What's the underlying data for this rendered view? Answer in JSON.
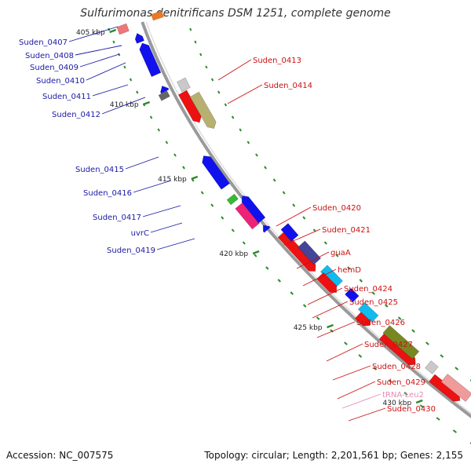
{
  "title": "Sulfurimonas denitrificans DSM 1251, complete genome",
  "footer": {
    "accession": "Accession: NC_007575",
    "summary": "Topology: circular; Length: 2,201,561 bp; Genes: 2,155"
  },
  "colors": {
    "backbone": "#9a9a9a",
    "left_label": "#1a1aa6",
    "right_label": "#cc1111",
    "trna_label": "#e38ab0",
    "ticks": "#2a8a2a"
  },
  "scale_labels": [
    "405 kbp",
    "410 kbp",
    "415 kbp",
    "420 kbp",
    "425 kbp",
    "430 kbp"
  ],
  "left_labels": [
    "Suden_0407",
    "Suden_0408",
    "Suden_0409",
    "Suden_0410",
    "Suden_0411",
    "Suden_0412",
    "Suden_0415",
    "Suden_0416",
    "Suden_0417",
    "uvrC",
    "Suden_0419"
  ],
  "right_labels": [
    "Suden_0413",
    "Suden_0414",
    "Suden_0420",
    "Suden_0421",
    "guaA",
    "hemD",
    "Suden_0424",
    "Suden_0425",
    "Suden_0426",
    "Suden_0427",
    "Suden_0428",
    "Suden_0429",
    "tRNA-Leu2",
    "Suden_0430"
  ]
}
